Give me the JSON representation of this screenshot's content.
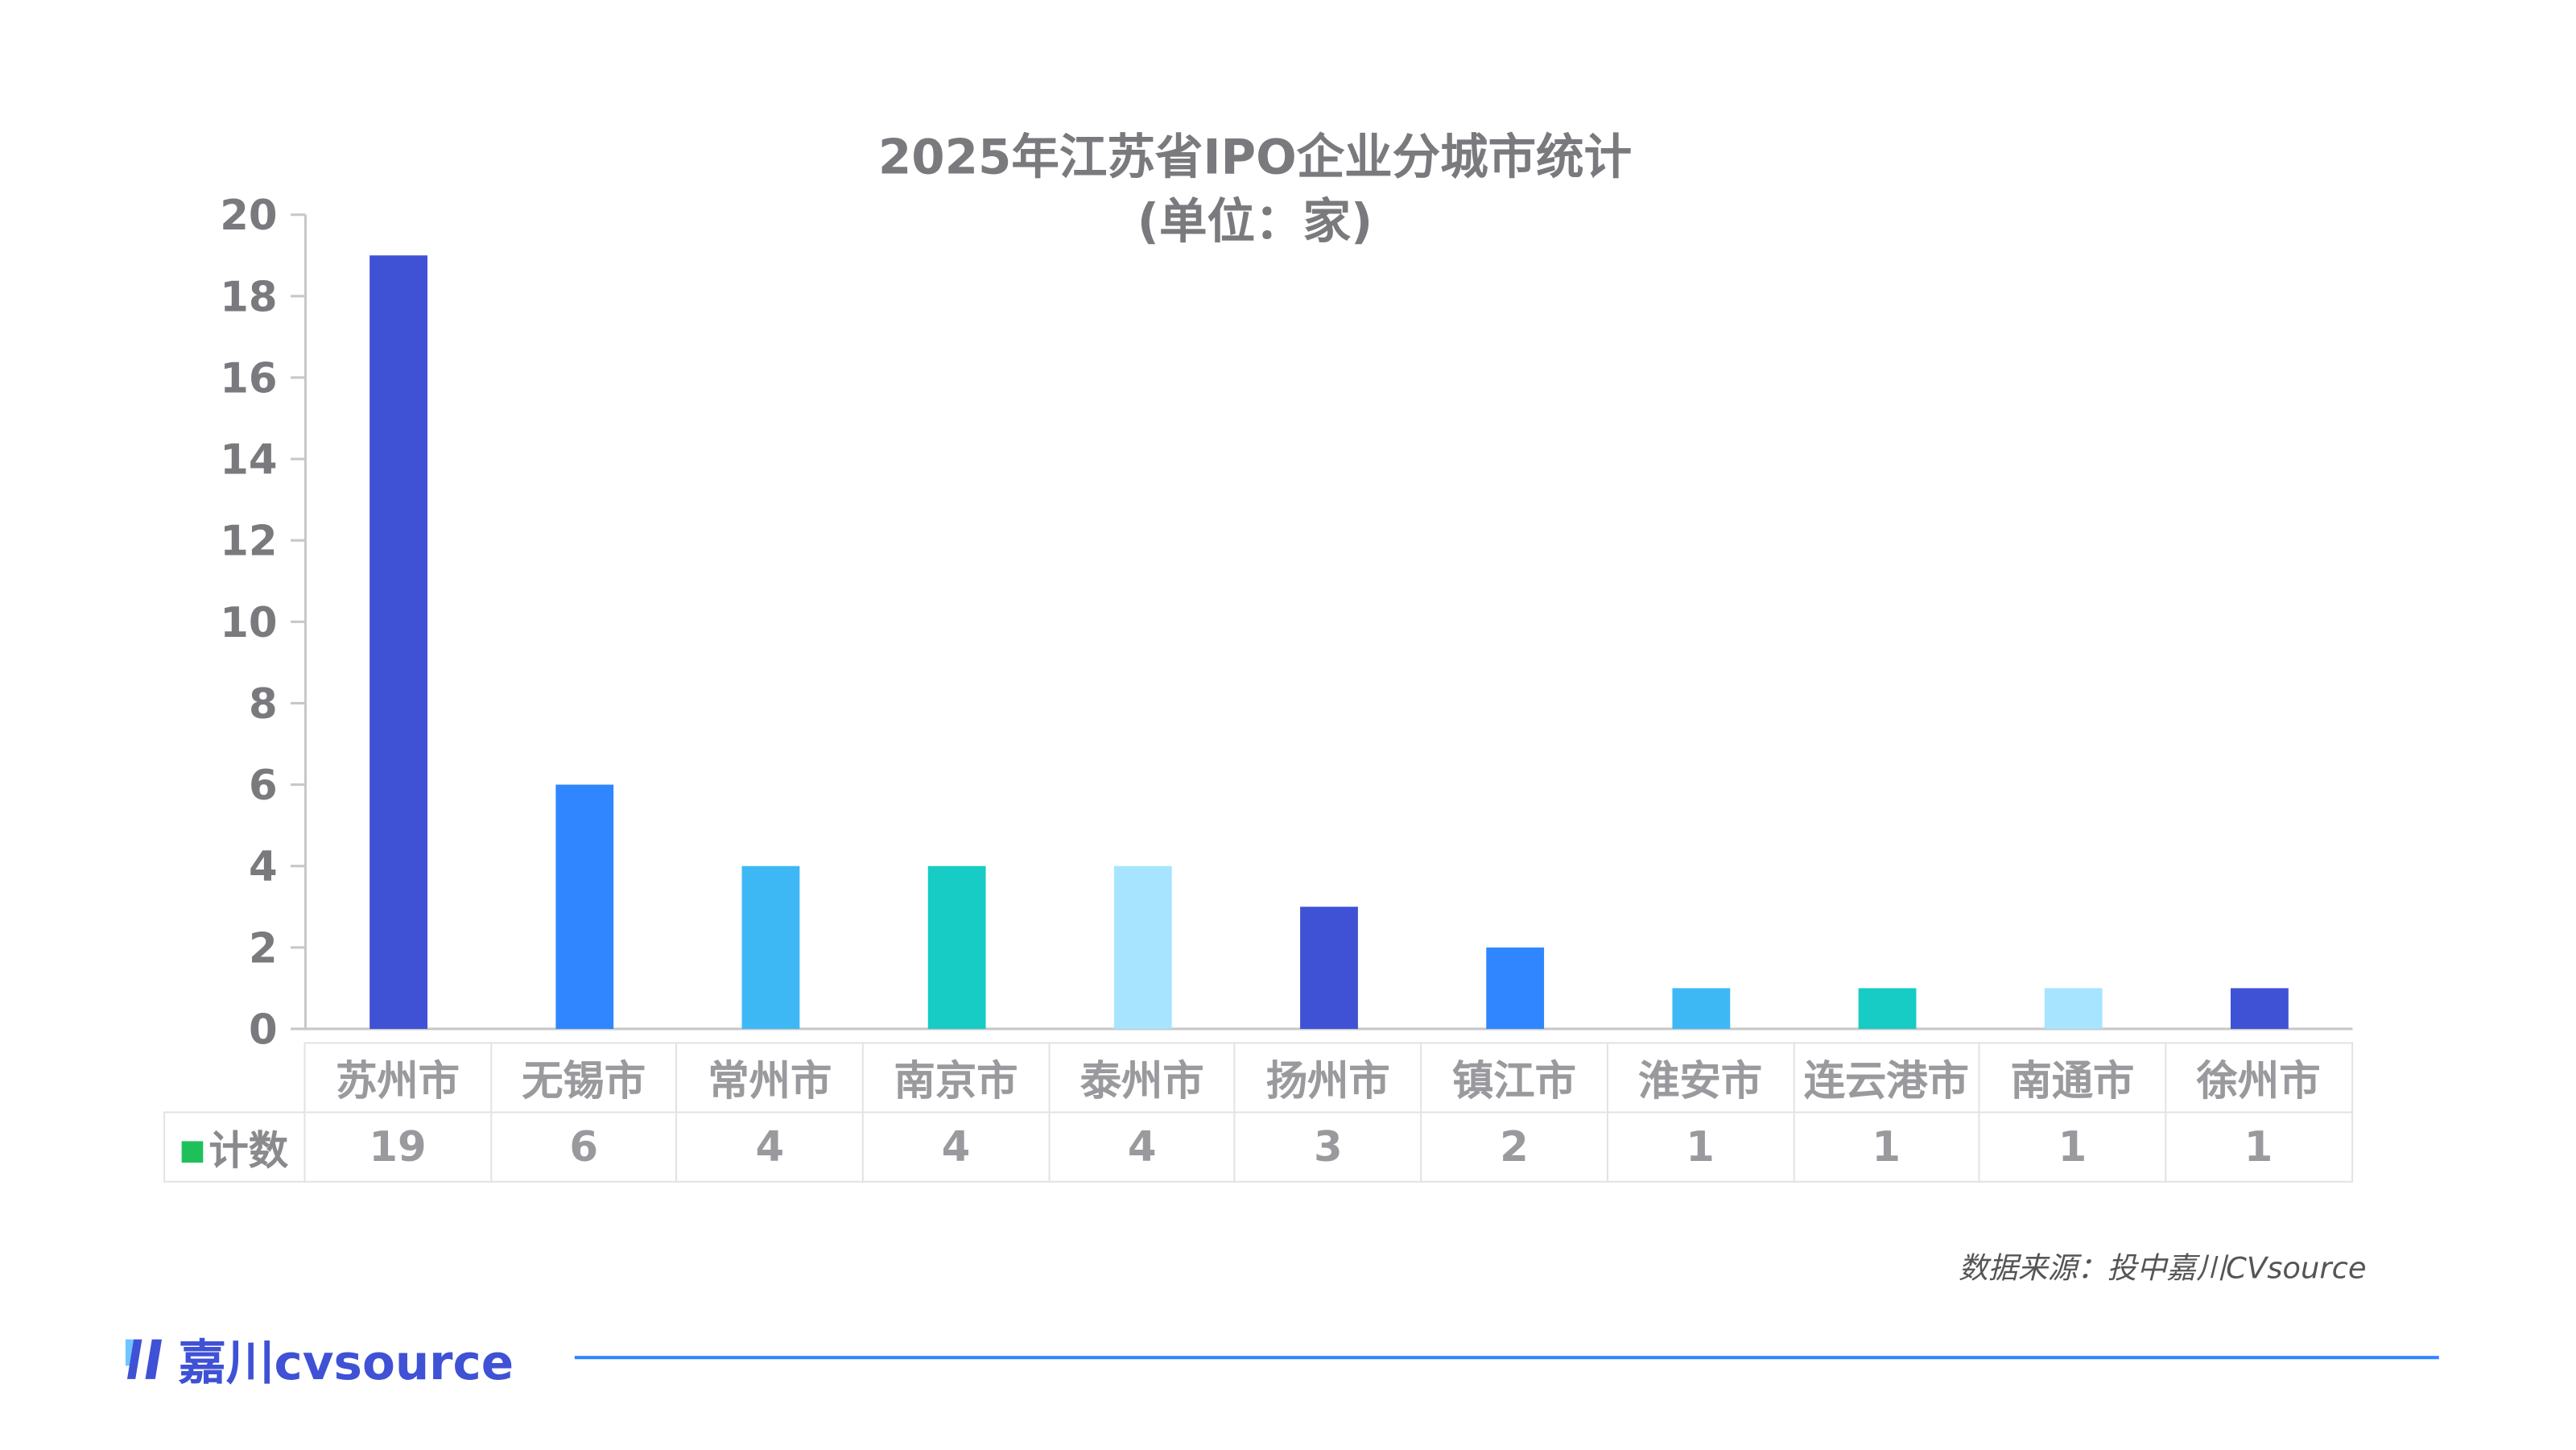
{
  "title": "2025年江苏省IPO企业分城市统计",
  "subtitle": "(单位：家)",
  "legend_label": "计数",
  "source": "数据来源：投中嘉川CVsource",
  "logo_text": "嘉川cvsource",
  "colors": {
    "axis": "#c8c8c8",
    "legend": "#1fc05a",
    "rule": "#2f86ff"
  },
  "chart_data": {
    "type": "bar",
    "title": "2025年江苏省IPO企业分城市统计 (单位：家)",
    "xlabel": "",
    "ylabel": "",
    "ylim": [
      0,
      20
    ],
    "yticks": [
      0,
      2,
      4,
      6,
      8,
      10,
      12,
      14,
      16,
      18,
      20
    ],
    "categories": [
      "苏州市",
      "无锡市",
      "常州市",
      "南京市",
      "泰州市",
      "扬州市",
      "镇江市",
      "淮安市",
      "连云港市",
      "南通市",
      "徐州市"
    ],
    "series": [
      {
        "name": "计数",
        "values": [
          19,
          6,
          4,
          4,
          4,
          3,
          2,
          1,
          1,
          1,
          1
        ]
      }
    ],
    "bar_colors": [
      "#3f51d5",
      "#2f86ff",
      "#3db8f5",
      "#16ccc5",
      "#a6e4ff",
      "#3f51d5",
      "#2f86ff",
      "#3db8f5",
      "#16ccc5",
      "#a6e4ff",
      "#3f51d5"
    ],
    "legend": "bottom-left (data table)",
    "grid": false
  }
}
